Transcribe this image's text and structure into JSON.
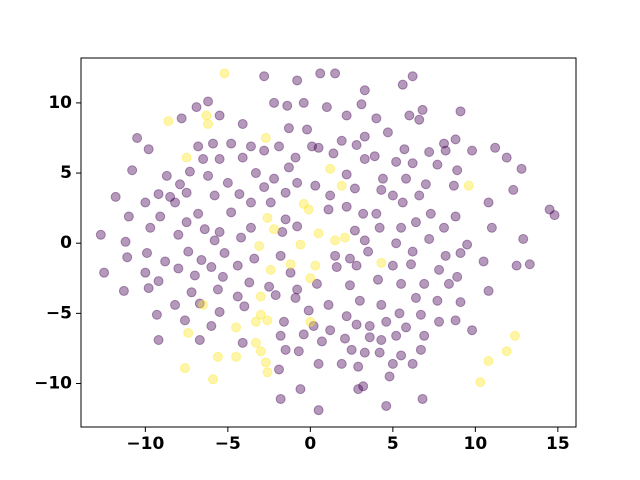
{
  "chart_data": {
    "type": "scatter",
    "xlim": [
      -13.9,
      16.1
    ],
    "ylim": [
      -13.1,
      13.2
    ],
    "xticks": [
      {
        "value": -10,
        "label": "−10"
      },
      {
        "value": -5,
        "label": "−5"
      },
      0,
      5,
      10,
      15
    ],
    "yticks": [
      {
        "value": -10,
        "label": "−10"
      },
      {
        "value": -5,
        "label": "−5"
      },
      0,
      5,
      10
    ],
    "opacity": 0.4,
    "series": [
      {
        "color": "#440154",
        "x": [
          -2.8,
          0.6,
          1.5,
          -0.8,
          5.6,
          6.2,
          3.3,
          -6.2,
          -6.9,
          -2.2,
          -1.4,
          -0.4,
          1.0,
          6.8,
          9.1,
          3.1,
          2.2,
          -10.5,
          -9.8,
          -7.8,
          -5.5,
          -4.1,
          -1.3,
          -0.2,
          4.0,
          4.7,
          6.0,
          6.6,
          3.3,
          8.1,
          8.8,
          11.2,
          -4.8,
          -5.9,
          -6.8,
          -3.6,
          -2.8,
          -1.9,
          0.1,
          0.5,
          1.9,
          1.4,
          2.8,
          5.7,
          7.2,
          8.2,
          9.8,
          11.9,
          12.8,
          -10.8,
          -8.7,
          -7.3,
          -6.5,
          -5.5,
          -4.1,
          -7.9,
          -6.2,
          -5.0,
          -3.3,
          -2.2,
          -1.3,
          -0.9,
          -0.8,
          0.3,
          2.2,
          3.3,
          3.9,
          5.2,
          6.2,
          7.7,
          8.9,
          4.4,
          5.8,
          7.0,
          8.7,
          12.3,
          2.7,
          -2.8,
          -9.2,
          -8.5,
          -7.5,
          -5.8,
          -4.3,
          -3.6,
          -1.5,
          1.2,
          4.3,
          5.0,
          6.6,
          5.6,
          -11.8,
          -11.0,
          -10.0,
          -8.2,
          -9.1,
          -6.8,
          -4.8,
          -2.4,
          -1.5,
          -0.8,
          1.1,
          2.2,
          3.2,
          4.0,
          7.3,
          8.8,
          10.8,
          11.0,
          14.5,
          14.8,
          -9.7,
          -7.5,
          -6.4,
          -5.5,
          -3.6,
          -1.7,
          2.7,
          4.2,
          5.5,
          8.1,
          6.4,
          -12.7,
          -11.2,
          -8.0,
          -4.2,
          -5.8,
          3.3,
          5.2,
          7.2,
          9.5,
          12.9,
          -12.5,
          -11.1,
          -9.9,
          -8.8,
          -7.4,
          -6.6,
          -5.2,
          -3.4,
          -1.8,
          1.5,
          2.4,
          3.5,
          6.2,
          8.2,
          9.1,
          10.5,
          12.5,
          13.3,
          -10.0,
          -8.0,
          -7.0,
          -6.0,
          -4.4,
          -1.2,
          1.6,
          2.8,
          5.0,
          6.1,
          7.8,
          8.9,
          -11.3,
          -9.2,
          -5.3,
          -3.7,
          -2.5,
          -0.8,
          0.4,
          2.4,
          4.1,
          5.5,
          6.9,
          8.4,
          10.8,
          -9.8,
          -7.2,
          -5.6,
          -4.4,
          -2.1,
          -0.9,
          1.1,
          3.0,
          4.3,
          6.4,
          7.7,
          9.1,
          -8.2,
          -6.7,
          -5.5,
          -4.0,
          -0.1,
          2.2,
          5.4,
          6.7,
          -9.3,
          -7.6,
          -6.0,
          -1.6,
          0.2,
          1.2,
          2.8,
          3.6,
          4.6,
          7.8,
          8.8,
          9.8,
          5.8,
          -9.2,
          -6.7,
          -4.1,
          -1.8,
          -0.4,
          0.7,
          2.1,
          3.6,
          4.3,
          5.2,
          6.9,
          -1.5,
          -0.7,
          2.5,
          3.3,
          4.2,
          5.5,
          6.7,
          -1.9,
          0.5,
          1.9,
          2.9,
          5.0,
          6.2,
          3.2,
          4.8,
          -0.6,
          -1.8,
          0.5,
          4.6,
          6.8,
          2.9
        ],
        "y": [
          11.9,
          12.1,
          12.1,
          11.6,
          11.3,
          11.9,
          10.9,
          10.1,
          9.7,
          10.0,
          9.8,
          10.0,
          9.7,
          9.5,
          9.4,
          9.9,
          9.1,
          7.5,
          6.7,
          8.9,
          9.1,
          8.5,
          8.2,
          8.1,
          8.9,
          7.9,
          9.1,
          8.8,
          7.6,
          7.1,
          7.4,
          6.8,
          7.1,
          7.1,
          6.9,
          6.9,
          6.6,
          6.9,
          6.9,
          6.8,
          7.3,
          6.4,
          7.0,
          6.7,
          6.5,
          6.6,
          6.6,
          6.1,
          5.3,
          5.2,
          4.8,
          5.1,
          6.0,
          6.0,
          6.1,
          4.2,
          4.8,
          4.3,
          5.0,
          4.6,
          5.4,
          6.1,
          4.3,
          4.1,
          4.9,
          6.0,
          6.2,
          5.8,
          5.7,
          5.6,
          5.2,
          4.6,
          4.6,
          4.2,
          4.1,
          3.8,
          3.9,
          4.0,
          3.5,
          3.3,
          3.6,
          3.4,
          3.5,
          2.9,
          3.6,
          3.4,
          3.8,
          3.4,
          3.4,
          2.9,
          3.3,
          1.9,
          2.9,
          2.9,
          1.9,
          2.1,
          2.2,
          2.9,
          1.7,
          1.2,
          2.4,
          2.6,
          2.1,
          2.1,
          2.1,
          1.9,
          2.9,
          1.1,
          2.4,
          2.0,
          1.1,
          1.5,
          1.0,
          0.8,
          1.1,
          0.8,
          0.9,
          1.1,
          1.1,
          1.1,
          1.5,
          0.6,
          0.1,
          0.6,
          0.4,
          0.2,
          0.2,
          0,
          0.3,
          -0.1,
          0.3,
          -2.1,
          -1.0,
          -0.7,
          -1.3,
          -0.6,
          -1.2,
          -0.7,
          -1.1,
          -0.9,
          -0.9,
          -1.1,
          -0.6,
          -0.6,
          -0.9,
          -0.7,
          -1.3,
          -1.6,
          -1.5,
          -2.1,
          -1.8,
          -2.3,
          -1.7,
          -1.6,
          -2.1,
          -1.7,
          -1.6,
          -1.6,
          -1.5,
          -1.9,
          -2.4,
          -3.4,
          -2.7,
          -2.4,
          -2.8,
          -3.1,
          -3.3,
          -2.9,
          -3.0,
          -2.6,
          -2.9,
          -2.9,
          -2.9,
          -3.4,
          -3.2,
          -3.5,
          -3.3,
          -3.8,
          -3.7,
          -3.9,
          -4.4,
          -4.1,
          -4.4,
          -3.9,
          -4.1,
          -4.2,
          -4.4,
          -4.3,
          -4.9,
          -4.5,
          -4.8,
          -5.2,
          -5.0,
          -5.1,
          -5.1,
          -5.5,
          -5.9,
          -5.6,
          -5.9,
          -6.2,
          -5.8,
          -5.9,
          -5.6,
          -5.6,
          -5.5,
          -6.2,
          -6.0,
          -6.9,
          -6.9,
          -7.1,
          -6.6,
          -6.5,
          -7.0,
          -6.8,
          -6.7,
          -6.9,
          -6.6,
          -6.6,
          -7.6,
          -7.7,
          -7.6,
          -7.8,
          -7.8,
          -8.0,
          -7.6,
          -9.0,
          -8.6,
          -8.6,
          -8.8,
          -8.6,
          -8.6,
          -10.2,
          -9.5,
          -10.4,
          -11.1,
          -11.9,
          -11.6,
          -11.1,
          -10.4
        ]
      },
      {
        "color": "#fde725",
        "x": [
          -5.2,
          -8.6,
          -6.3,
          -6.2,
          -7.5,
          -2.7,
          1.2,
          1.9,
          9.6,
          -0.4,
          -0.1,
          -2.6,
          -2.2,
          -0.6,
          0.5,
          2.1,
          1.5,
          -3.1,
          0.3,
          -1.2,
          -2.4,
          4.3,
          0,
          -3.0,
          -6.5,
          -3.0,
          -3.3,
          -2.6,
          -4.5,
          -7.4,
          0,
          -3.3,
          -3.0,
          -4.5,
          -5.6,
          -2.7,
          -2.6,
          -7.6,
          -5.9,
          12.4,
          11.9,
          10.8,
          10.3
        ],
        "y": [
          12.1,
          8.7,
          9.1,
          8.5,
          6.1,
          7.5,
          5.3,
          4.1,
          4.1,
          2.8,
          2.4,
          1.8,
          1.0,
          -0.1,
          0.7,
          0.4,
          0.2,
          -0.2,
          -1.6,
          -1.5,
          -1.9,
          -1.4,
          -2.5,
          -3.8,
          -4.4,
          -5.1,
          -5.6,
          -5.5,
          -6.0,
          -6.4,
          -5.6,
          -7.1,
          -7.7,
          -8.1,
          -8.1,
          -8.5,
          -9.2,
          -8.9,
          -9.7,
          -6.6,
          -7.7,
          -8.4,
          -9.9
        ]
      }
    ]
  }
}
